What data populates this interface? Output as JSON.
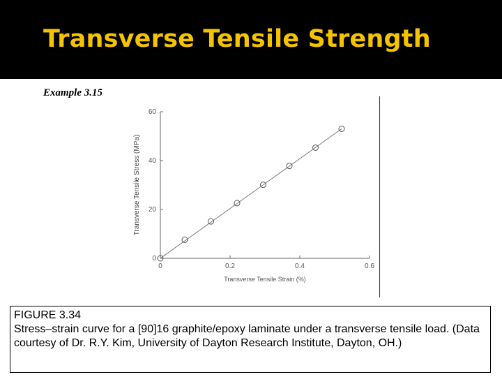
{
  "slide": {
    "title": "Transverse Tensile Strength",
    "example_label": "Example 3.15"
  },
  "colors": {
    "title_bar": "#000000",
    "title_text": "#f5c400",
    "plot_line": "#777777",
    "marker": "#555555"
  },
  "caption": {
    "figure_label": "FIGURE 3.34",
    "text": "Stress–strain curve for a [90]16 graphite/epoxy laminate under a transverse tensile load. (Data courtesy of Dr. R.Y. Kim, University of Dayton Research Institute, Dayton, OH.)"
  },
  "chart_data": {
    "type": "scatter",
    "xlabel": "Transverse Tensile Strain (%)",
    "ylabel": "Transverse Tensile Stress (MPa)",
    "xlim": [
      0,
      0.6
    ],
    "ylim": [
      0,
      60
    ],
    "xticks": [
      0,
      0.2,
      0.4,
      0.6
    ],
    "xtick_labels": [
      "0",
      "0.2",
      "0.4",
      "0.6"
    ],
    "yticks": [
      0,
      20,
      40,
      60
    ],
    "ytick_labels": [
      "0",
      "20",
      "40",
      "60"
    ],
    "grid": false,
    "series": [
      {
        "x": [
          0,
          0.07,
          0.145,
          0.22,
          0.295,
          0.37,
          0.445,
          0.52
        ],
        "y": [
          0,
          7.6,
          15.1,
          22.6,
          30.1,
          37.8,
          45.3,
          53.0
        ]
      }
    ],
    "fit_line": {
      "x": [
        0,
        0.52
      ],
      "y": [
        0,
        53.0
      ]
    }
  }
}
